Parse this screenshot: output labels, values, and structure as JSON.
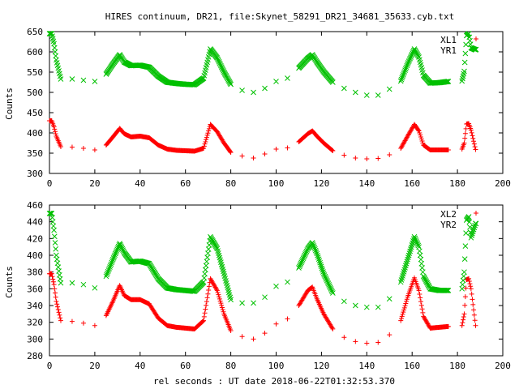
{
  "title": "HIRES continuum, DR21, file:Skynet_58291_DR21_34681_35633.cyb.txt",
  "xlabel": "rel seconds : UT date 2018-06-22T01:32:53.370",
  "colors": {
    "XL": "#ff0000",
    "YR": "#00c000"
  },
  "chart_data": [
    {
      "type": "scatter",
      "ylabel": "Counts",
      "xlim": [
        0,
        200
      ],
      "ylim": [
        300,
        650
      ],
      "xticks": [
        0,
        20,
        40,
        60,
        80,
        100,
        120,
        140,
        160,
        180,
        200
      ],
      "yticks": [
        300,
        350,
        400,
        450,
        500,
        550,
        600,
        650
      ],
      "legend_position": "top-right",
      "series": [
        {
          "name": "XL1",
          "marker": "plus",
          "x": [
            0,
            1,
            2,
            3,
            5,
            10,
            15,
            20,
            25,
            28,
            31,
            33,
            36,
            40,
            44,
            48,
            52,
            56,
            60,
            64,
            68,
            71,
            74,
            77,
            80,
            85,
            90,
            95,
            100,
            105,
            110,
            114,
            116,
            118,
            121,
            125,
            130,
            135,
            140,
            145,
            150,
            155,
            158,
            161,
            163,
            165,
            168,
            172,
            176,
            182,
            183,
            184,
            185,
            186,
            188
          ],
          "y": [
            430,
            430,
            415,
            392,
            366,
            365,
            362,
            358,
            370,
            390,
            411,
            398,
            390,
            392,
            388,
            370,
            360,
            357,
            356,
            355,
            362,
            421,
            403,
            375,
            352,
            343,
            338,
            348,
            360,
            363,
            378,
            398,
            405,
            392,
            375,
            356,
            345,
            338,
            336,
            337,
            346,
            362,
            392,
            421,
            405,
            370,
            358,
            358,
            358,
            360,
            375,
            422,
            423,
            407,
            359
          ]
        },
        {
          "name": "YR1",
          "marker": "cross",
          "x": [
            0,
            1,
            2,
            3,
            5,
            10,
            15,
            20,
            25,
            28,
            31,
            33,
            36,
            40,
            44,
            48,
            52,
            56,
            60,
            64,
            68,
            71,
            74,
            77,
            80,
            85,
            90,
            95,
            100,
            105,
            110,
            114,
            116,
            118,
            121,
            125,
            130,
            135,
            140,
            145,
            150,
            155,
            158,
            161,
            163,
            165,
            168,
            172,
            176,
            182,
            183,
            184,
            185,
            186,
            188
          ],
          "y": [
            645,
            645,
            620,
            580,
            533,
            533,
            530,
            527,
            545,
            570,
            593,
            575,
            566,
            567,
            562,
            540,
            525,
            522,
            520,
            519,
            535,
            607,
            585,
            550,
            520,
            505,
            500,
            510,
            527,
            535,
            560,
            584,
            593,
            575,
            551,
            525,
            510,
            500,
            493,
            493,
            508,
            528,
            570,
            607,
            587,
            542,
            523,
            524,
            527,
            528,
            552,
            640,
            645,
            610,
            605
          ]
        }
      ]
    },
    {
      "type": "scatter",
      "ylabel": "Counts",
      "xlim": [
        0,
        200
      ],
      "ylim": [
        280,
        460
      ],
      "xticks": [
        0,
        20,
        40,
        60,
        80,
        100,
        120,
        140,
        160,
        180,
        200
      ],
      "yticks": [
        280,
        300,
        320,
        340,
        360,
        380,
        400,
        420,
        440,
        460
      ],
      "legend_position": "top-right",
      "series": [
        {
          "name": "XL2",
          "marker": "plus",
          "x": [
            0,
            1,
            2,
            3,
            5,
            10,
            15,
            20,
            25,
            28,
            31,
            33,
            36,
            40,
            44,
            48,
            52,
            56,
            60,
            64,
            68,
            71,
            74,
            77,
            80,
            85,
            90,
            95,
            100,
            105,
            110,
            114,
            116,
            118,
            121,
            125,
            130,
            135,
            140,
            145,
            150,
            155,
            158,
            161,
            163,
            165,
            168,
            172,
            176,
            182,
            183,
            184,
            185,
            186,
            188
          ],
          "y": [
            378,
            378,
            365,
            345,
            322,
            321,
            319,
            316,
            328,
            345,
            364,
            352,
            347,
            347,
            342,
            325,
            316,
            314,
            313,
            312,
            322,
            372,
            358,
            330,
            310,
            303,
            300,
            307,
            318,
            324,
            340,
            358,
            362,
            348,
            330,
            312,
            302,
            297,
            295,
            296,
            305,
            322,
            350,
            373,
            358,
            327,
            313,
            314,
            315,
            316,
            330,
            371,
            372,
            360,
            316
          ]
        },
        {
          "name": "YR2",
          "marker": "cross",
          "x": [
            0,
            1,
            2,
            3,
            5,
            10,
            15,
            20,
            25,
            28,
            31,
            33,
            36,
            40,
            44,
            48,
            52,
            56,
            60,
            64,
            68,
            71,
            74,
            77,
            80,
            85,
            90,
            95,
            100,
            105,
            110,
            114,
            116,
            118,
            121,
            125,
            130,
            135,
            140,
            145,
            150,
            155,
            158,
            161,
            163,
            165,
            168,
            172,
            176,
            182,
            183,
            184,
            185,
            186,
            188
          ],
          "y": [
            450,
            450,
            430,
            400,
            367,
            367,
            365,
            361,
            375,
            395,
            414,
            403,
            392,
            393,
            390,
            372,
            361,
            359,
            358,
            357,
            368,
            422,
            408,
            378,
            347,
            343,
            343,
            350,
            363,
            368,
            385,
            408,
            415,
            402,
            378,
            355,
            345,
            340,
            338,
            338,
            348,
            368,
            395,
            422,
            410,
            375,
            360,
            358,
            358,
            360,
            380,
            442,
            446,
            421,
            438
          ]
        }
      ]
    }
  ]
}
